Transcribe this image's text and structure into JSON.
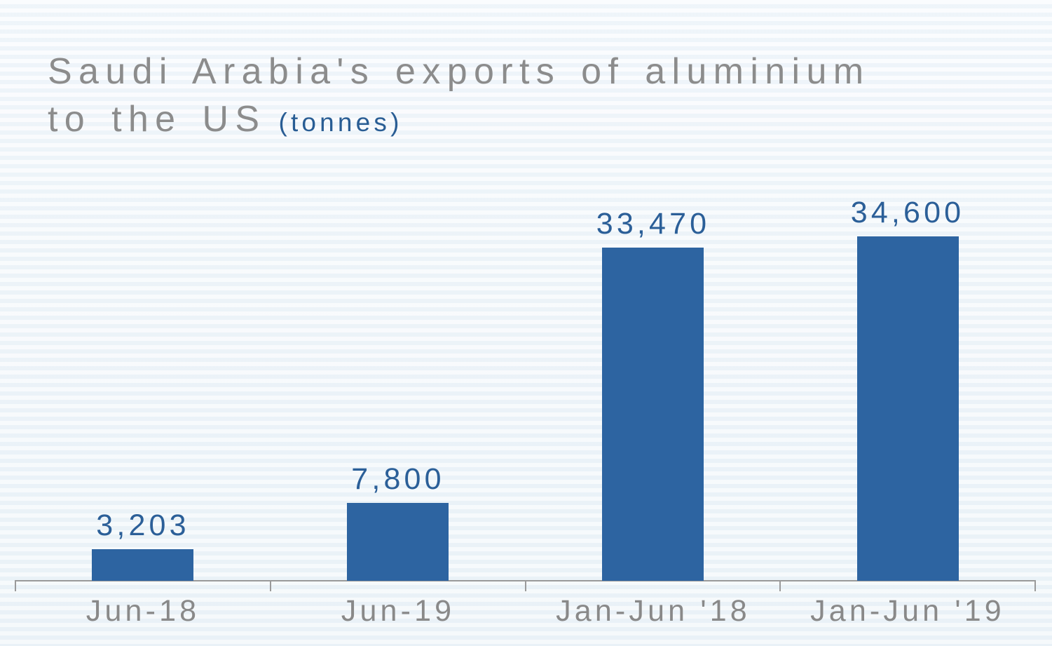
{
  "header": {
    "title_line1": "Saudi Arabia's exports of aluminium",
    "title_line2": "to the US",
    "unit_label": "(tonnes)"
  },
  "chart_data": {
    "type": "bar",
    "title": "Saudi Arabia's exports of aluminium to the US",
    "unit": "tonnes",
    "categories": [
      "Jun-18",
      "Jun-19",
      "Jan-Jun '18",
      "Jan-Jun '19"
    ],
    "values": [
      3203,
      7800,
      33470,
      34600
    ],
    "value_labels": [
      "3,203",
      "7,800",
      "33,470",
      "34,600"
    ],
    "xlabel": "",
    "ylabel": "",
    "ylim": [
      0,
      36600
    ],
    "grid": false,
    "legend": false,
    "data_labels_position": "above-bar",
    "colors": {
      "bar": "#2d64a1",
      "value_label_text": "#2b5f98",
      "unit_text": "#295d94",
      "title_text": "#8c8c8c",
      "category_label_text": "#898989",
      "axis_line": "#9a9a9a",
      "background": "#f3f7fa"
    }
  }
}
